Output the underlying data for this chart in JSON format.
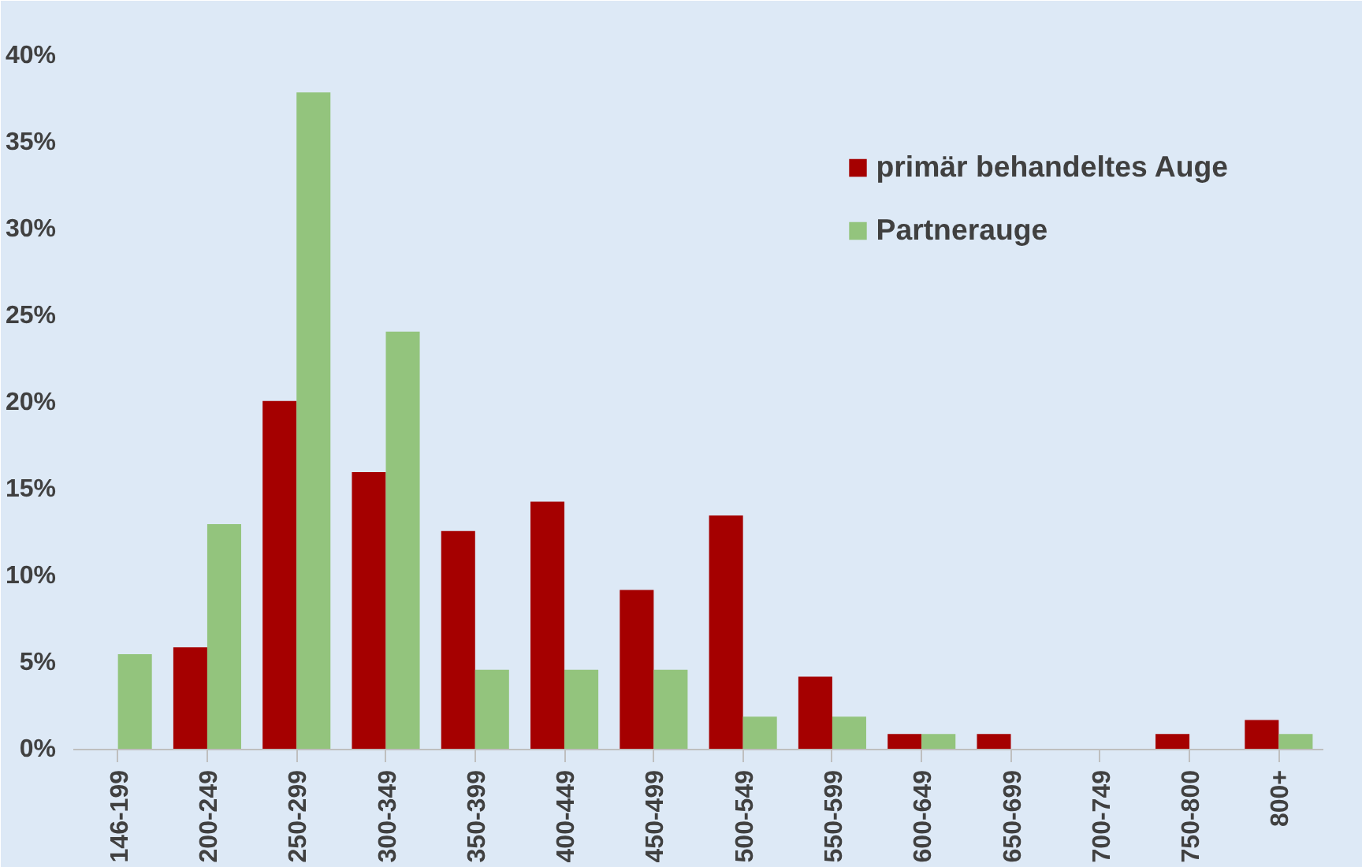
{
  "chart_data": {
    "type": "bar",
    "categories": [
      "146-199",
      "200-249",
      "250-299",
      "300-349",
      "350-399",
      "400-449",
      "450-499",
      "500-549",
      "550-599",
      "600-649",
      "650-699",
      "700-749",
      "750-800",
      "800+"
    ],
    "series": [
      {
        "name": "primär behandeltes Auge",
        "color": "#a50000",
        "values": [
          0,
          5.9,
          20.1,
          16.0,
          12.6,
          14.3,
          9.2,
          13.5,
          4.2,
          0.9,
          0.9,
          0,
          0.9,
          1.7
        ]
      },
      {
        "name": "Partnerauge",
        "color": "#93c47d",
        "values": [
          5.5,
          13.0,
          37.9,
          24.1,
          4.6,
          4.6,
          4.6,
          1.9,
          1.9,
          0.9,
          0,
          0,
          0,
          0.9
        ]
      }
    ],
    "ylim": [
      0,
      40
    ],
    "yticks": [
      {
        "value": 0,
        "label": "0%"
      },
      {
        "value": 5,
        "label": "5%"
      },
      {
        "value": 10,
        "label": "10%"
      },
      {
        "value": 15,
        "label": "15%"
      },
      {
        "value": 20,
        "label": "20%"
      },
      {
        "value": 25,
        "label": "25%"
      },
      {
        "value": 30,
        "label": "30%"
      },
      {
        "value": 35,
        "label": "35%"
      },
      {
        "value": 40,
        "label": "40%"
      }
    ],
    "grid": false,
    "legend": "top right"
  }
}
